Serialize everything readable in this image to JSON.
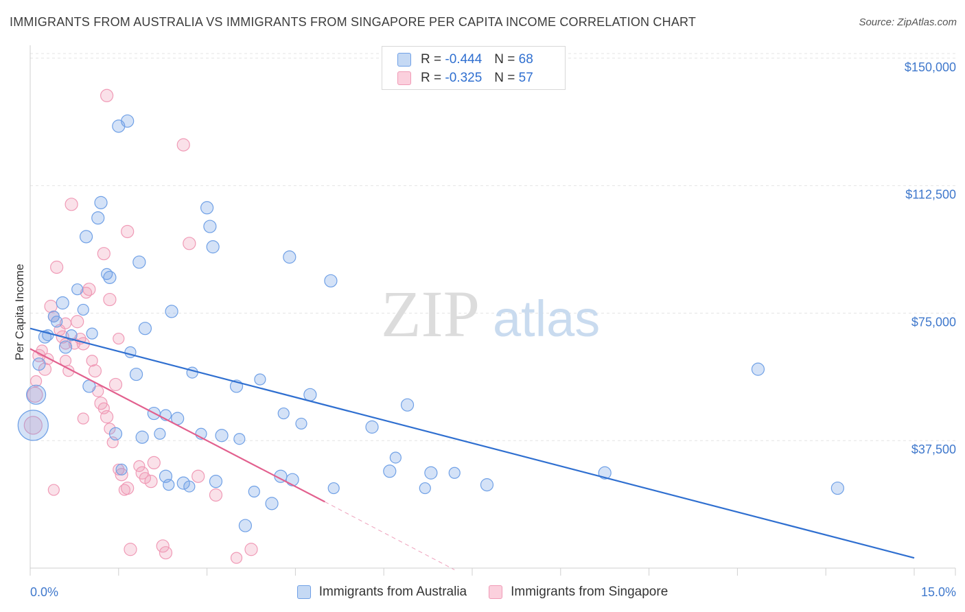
{
  "title": "IMMIGRANTS FROM AUSTRALIA VS IMMIGRANTS FROM SINGAPORE PER CAPITA INCOME CORRELATION CHART",
  "source": "Source: ZipAtlas.com",
  "watermark": {
    "zip": "ZIP",
    "atlas": "atlas"
  },
  "legend": {
    "australia": {
      "r_label": "R = ",
      "r_value": "-0.444",
      "n_label": "N = ",
      "n_value": "68"
    },
    "singapore": {
      "r_label": "R = ",
      "r_value": "-0.325",
      "n_label": "N = ",
      "n_value": "57"
    }
  },
  "chart_data": {
    "type": "scatter",
    "title": "IMMIGRANTS FROM AUSTRALIA VS IMMIGRANTS FROM SINGAPORE PER CAPITA INCOME CORRELATION CHART",
    "xlabel": "",
    "ylabel": "Per Capita Income",
    "xlim": [
      0,
      15
    ],
    "ylim": [
      0,
      155000
    ],
    "x_tick_labels": [
      "0.0%",
      "15.0%"
    ],
    "y_ticks": [
      37500,
      75000,
      112500,
      150000
    ],
    "y_tick_labels": [
      "$37,500",
      "$75,000",
      "$112,500",
      "$150,000"
    ],
    "colors": {
      "australia": "#6fa0e6",
      "australia_line": "#2f6fd0",
      "singapore": "#f09ab6",
      "singapore_line": "#e2608e"
    },
    "series": [
      {
        "name": "Immigrants from Australia",
        "trend": {
          "x0": 0,
          "y0": 70500,
          "x1": 15,
          "y1": 3000
        },
        "points": [
          [
            0.05,
            42000,
            22
          ],
          [
            0.1,
            51000,
            14
          ],
          [
            0.15,
            60000,
            9
          ],
          [
            0.25,
            68000,
            9
          ],
          [
            0.3,
            68500,
            8
          ],
          [
            0.4,
            74000,
            8
          ],
          [
            0.45,
            72500,
            8
          ],
          [
            0.55,
            78000,
            9
          ],
          [
            0.6,
            65000,
            9
          ],
          [
            0.7,
            68500,
            8
          ],
          [
            0.8,
            82000,
            8
          ],
          [
            0.9,
            76000,
            8
          ],
          [
            0.95,
            97500,
            9
          ],
          [
            1.0,
            53500,
            9
          ],
          [
            1.05,
            69000,
            8
          ],
          [
            1.15,
            103000,
            9
          ],
          [
            1.2,
            107500,
            9
          ],
          [
            1.3,
            86500,
            8
          ],
          [
            1.35,
            85500,
            9
          ],
          [
            1.45,
            39500,
            9
          ],
          [
            1.5,
            130000,
            9
          ],
          [
            1.55,
            29000,
            8
          ],
          [
            1.65,
            131500,
            9
          ],
          [
            1.7,
            63500,
            8
          ],
          [
            1.8,
            57000,
            9
          ],
          [
            1.85,
            90000,
            9
          ],
          [
            1.9,
            38500,
            9
          ],
          [
            1.95,
            70500,
            9
          ],
          [
            2.1,
            45500,
            9
          ],
          [
            2.2,
            39500,
            8
          ],
          [
            2.3,
            45000,
            8
          ],
          [
            2.3,
            27000,
            9
          ],
          [
            2.35,
            24500,
            8
          ],
          [
            2.4,
            75500,
            9
          ],
          [
            2.5,
            44000,
            9
          ],
          [
            2.6,
            25000,
            9
          ],
          [
            2.7,
            24000,
            8
          ],
          [
            2.75,
            57500,
            8
          ],
          [
            2.9,
            39500,
            8
          ],
          [
            3.0,
            106000,
            9
          ],
          [
            3.05,
            100500,
            9
          ],
          [
            3.1,
            94500,
            9
          ],
          [
            3.15,
            25500,
            9
          ],
          [
            3.25,
            39000,
            9
          ],
          [
            3.5,
            53500,
            9
          ],
          [
            3.55,
            38000,
            8
          ],
          [
            3.65,
            12500,
            9
          ],
          [
            3.8,
            22500,
            8
          ],
          [
            3.9,
            55500,
            8
          ],
          [
            4.1,
            19000,
            9
          ],
          [
            4.25,
            27000,
            9
          ],
          [
            4.3,
            45500,
            8
          ],
          [
            4.4,
            91500,
            9
          ],
          [
            4.45,
            26000,
            9
          ],
          [
            4.6,
            42500,
            8
          ],
          [
            4.75,
            51000,
            9
          ],
          [
            5.1,
            84500,
            9
          ],
          [
            5.15,
            23500,
            8
          ],
          [
            5.8,
            41500,
            9
          ],
          [
            6.1,
            28500,
            9
          ],
          [
            6.2,
            32500,
            8
          ],
          [
            6.4,
            48000,
            9
          ],
          [
            6.7,
            23500,
            8
          ],
          [
            6.8,
            28000,
            9
          ],
          [
            7.2,
            28000,
            8
          ],
          [
            7.75,
            24500,
            9
          ],
          [
            9.75,
            28000,
            9
          ],
          [
            12.35,
            58500,
            9
          ],
          [
            13.7,
            23500,
            9
          ]
        ]
      },
      {
        "name": "Immigrants from Singapore",
        "trend": {
          "x0": 0,
          "y0": 64500,
          "x1": 5,
          "y1": 19500
        },
        "trend_dashed_to": {
          "x": 7.2,
          "y": -500
        },
        "points": [
          [
            0.05,
            42000,
            13
          ],
          [
            0.08,
            51000,
            11
          ],
          [
            0.1,
            55000,
            8
          ],
          [
            0.15,
            62500,
            9
          ],
          [
            0.2,
            64000,
            8
          ],
          [
            0.25,
            58500,
            9
          ],
          [
            0.3,
            61500,
            8
          ],
          [
            0.35,
            77000,
            9
          ],
          [
            0.4,
            74000,
            8
          ],
          [
            0.45,
            88500,
            9
          ],
          [
            0.5,
            70000,
            8
          ],
          [
            0.55,
            68000,
            9
          ],
          [
            0.6,
            61000,
            8
          ],
          [
            0.7,
            107000,
            9
          ],
          [
            0.75,
            66000,
            8
          ],
          [
            0.8,
            72500,
            9
          ],
          [
            0.85,
            67500,
            8
          ],
          [
            0.9,
            66000,
            9
          ],
          [
            0.95,
            81000,
            8
          ],
          [
            1.0,
            82000,
            9
          ],
          [
            1.05,
            61000,
            8
          ],
          [
            1.1,
            58000,
            9
          ],
          [
            1.15,
            52000,
            8
          ],
          [
            1.2,
            48500,
            9
          ],
          [
            1.25,
            47000,
            8
          ],
          [
            1.3,
            44500,
            9
          ],
          [
            1.35,
            41000,
            8
          ],
          [
            1.4,
            37000,
            8
          ],
          [
            1.45,
            54000,
            9
          ],
          [
            1.5,
            29000,
            8
          ],
          [
            1.55,
            27500,
            9
          ],
          [
            1.6,
            23000,
            8
          ],
          [
            1.65,
            23500,
            9
          ],
          [
            1.7,
            5500,
            9
          ],
          [
            1.85,
            30000,
            8
          ],
          [
            1.9,
            28000,
            9
          ],
          [
            1.95,
            26500,
            8
          ],
          [
            2.05,
            25500,
            9
          ],
          [
            2.1,
            31000,
            9
          ],
          [
            2.25,
            6500,
            9
          ],
          [
            2.3,
            4500,
            9
          ],
          [
            1.25,
            92500,
            9
          ],
          [
            1.35,
            79000,
            9
          ],
          [
            1.5,
            67500,
            8
          ],
          [
            1.65,
            99000,
            9
          ],
          [
            1.3,
            139000,
            9
          ],
          [
            2.6,
            124500,
            9
          ],
          [
            2.7,
            95500,
            9
          ],
          [
            2.85,
            27000,
            9
          ],
          [
            3.15,
            21500,
            9
          ],
          [
            3.5,
            3000,
            8
          ],
          [
            3.75,
            5500,
            9
          ],
          [
            0.65,
            58000,
            8
          ],
          [
            0.6,
            72000,
            8
          ],
          [
            0.9,
            44000,
            8
          ],
          [
            0.4,
            23000,
            8
          ],
          [
            0.6,
            66000,
            8
          ]
        ]
      }
    ]
  },
  "bottom_legend": {
    "australia": "Immigrants from Australia",
    "singapore": "Immigrants from Singapore"
  }
}
